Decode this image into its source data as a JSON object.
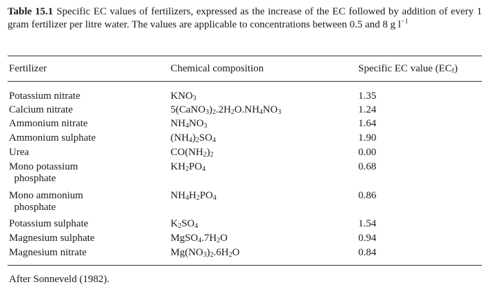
{
  "caption": {
    "label": "Table 15.1",
    "text": "Specific EC values of fertilizers, expressed as the increase of the EC followed by addition of every 1 gram fertilizer per litre water. The values are applicable to concentrations between 0.5 and 8 g l⁻¹"
  },
  "table": {
    "headers": [
      "Fertilizer",
      "Chemical composition",
      "Specific EC value (ECₑ)"
    ],
    "rows": [
      {
        "fertilizer": "Potassium nitrate",
        "composition": "KNO3",
        "ec": "1.35"
      },
      {
        "fertilizer": "Calcium nitrate",
        "composition": "5(CaNO3)2.2H2O.NH4NO3",
        "ec": "1.24"
      },
      {
        "fertilizer": "Ammonium nitrate",
        "composition": "NH4NO3",
        "ec": "1.64"
      },
      {
        "fertilizer": "Ammonium sulphate",
        "composition": "(NH4)2SO4",
        "ec": "1.90"
      },
      {
        "fertilizer": "Urea",
        "composition": "CO(NH2)2",
        "ec": "0.00"
      },
      {
        "fertilizer": "Mono potassium phosphate",
        "composition": "KH2PO4",
        "ec": "0.68"
      },
      {
        "fertilizer": "Mono ammonium phosphate",
        "composition": "NH4H2PO4",
        "ec": "0.86"
      },
      {
        "fertilizer": "Potassium sulphate",
        "composition": "K2SO4",
        "ec": "1.54"
      },
      {
        "fertilizer": "Magnesium sulphate",
        "composition": "MgSO4.7H2O",
        "ec": "0.94"
      },
      {
        "fertilizer": "Magnesium nitrate",
        "composition": "Mg(NO3)2.6H2O",
        "ec": "0.84"
      }
    ]
  },
  "footer": "After Sonneveld (1982)."
}
